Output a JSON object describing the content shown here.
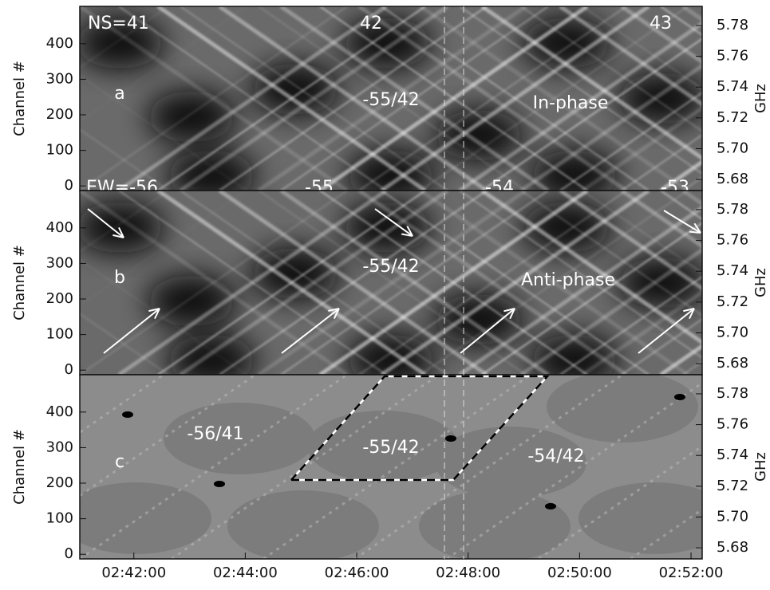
{
  "chart_data": [
    {
      "type": "image",
      "panel_label": "a",
      "ylabel": "Channel #",
      "y2label": "GHz",
      "ylim": [
        -13,
        505
      ],
      "yticks": [
        0,
        100,
        200,
        300,
        400
      ],
      "y2lim": [
        5.6728,
        5.7924
      ],
      "y2ticks": [
        5.68,
        {
          "value": 5.7,
          "label": "5.70"
        },
        5.72,
        5.74,
        5.76,
        5.78
      ],
      "annotations": [
        "NS=41",
        "42",
        "43",
        "-55/42",
        "In-phase",
        "EW=-56",
        "-55",
        "-54",
        "-53"
      ]
    },
    {
      "type": "image",
      "panel_label": "b",
      "ylabel": "Channel #",
      "y2label": "GHz",
      "ylim": [
        -13,
        505
      ],
      "yticks": [
        0,
        100,
        200,
        300,
        400
      ],
      "y2lim": [
        5.6728,
        5.7924
      ],
      "y2ticks": [
        5.68,
        {
          "value": 5.7,
          "label": "5.70"
        },
        5.72,
        5.74,
        5.76,
        5.78
      ],
      "annotations": [
        "-55/42",
        "Anti-phase"
      ]
    },
    {
      "type": "image",
      "panel_label": "c",
      "ylabel": "Channel #",
      "y2label": "GHz",
      "ylim": [
        -13,
        505
      ],
      "yticks": [
        0,
        100,
        200,
        300,
        400
      ],
      "y2lim": [
        5.6728,
        5.7924
      ],
      "y2ticks": [
        5.68,
        {
          "value": 5.7,
          "label": "5.70"
        },
        5.72,
        5.74,
        5.76,
        5.78
      ],
      "annotations": [
        "-56/41",
        "-55/42",
        "-54/42"
      ],
      "xlim": [
        41.03,
        52.2
      ],
      "xticks": [
        {
          "value": 42,
          "label": "02:42:00"
        },
        {
          "value": 44,
          "label": "02:44:00"
        },
        {
          "value": 46,
          "label": "02:46:00"
        },
        {
          "value": 48,
          "label": "02:48:00"
        },
        {
          "value": 50,
          "label": "02:50:00"
        },
        {
          "value": 52,
          "label": "02:52:00"
        }
      ]
    }
  ]
}
